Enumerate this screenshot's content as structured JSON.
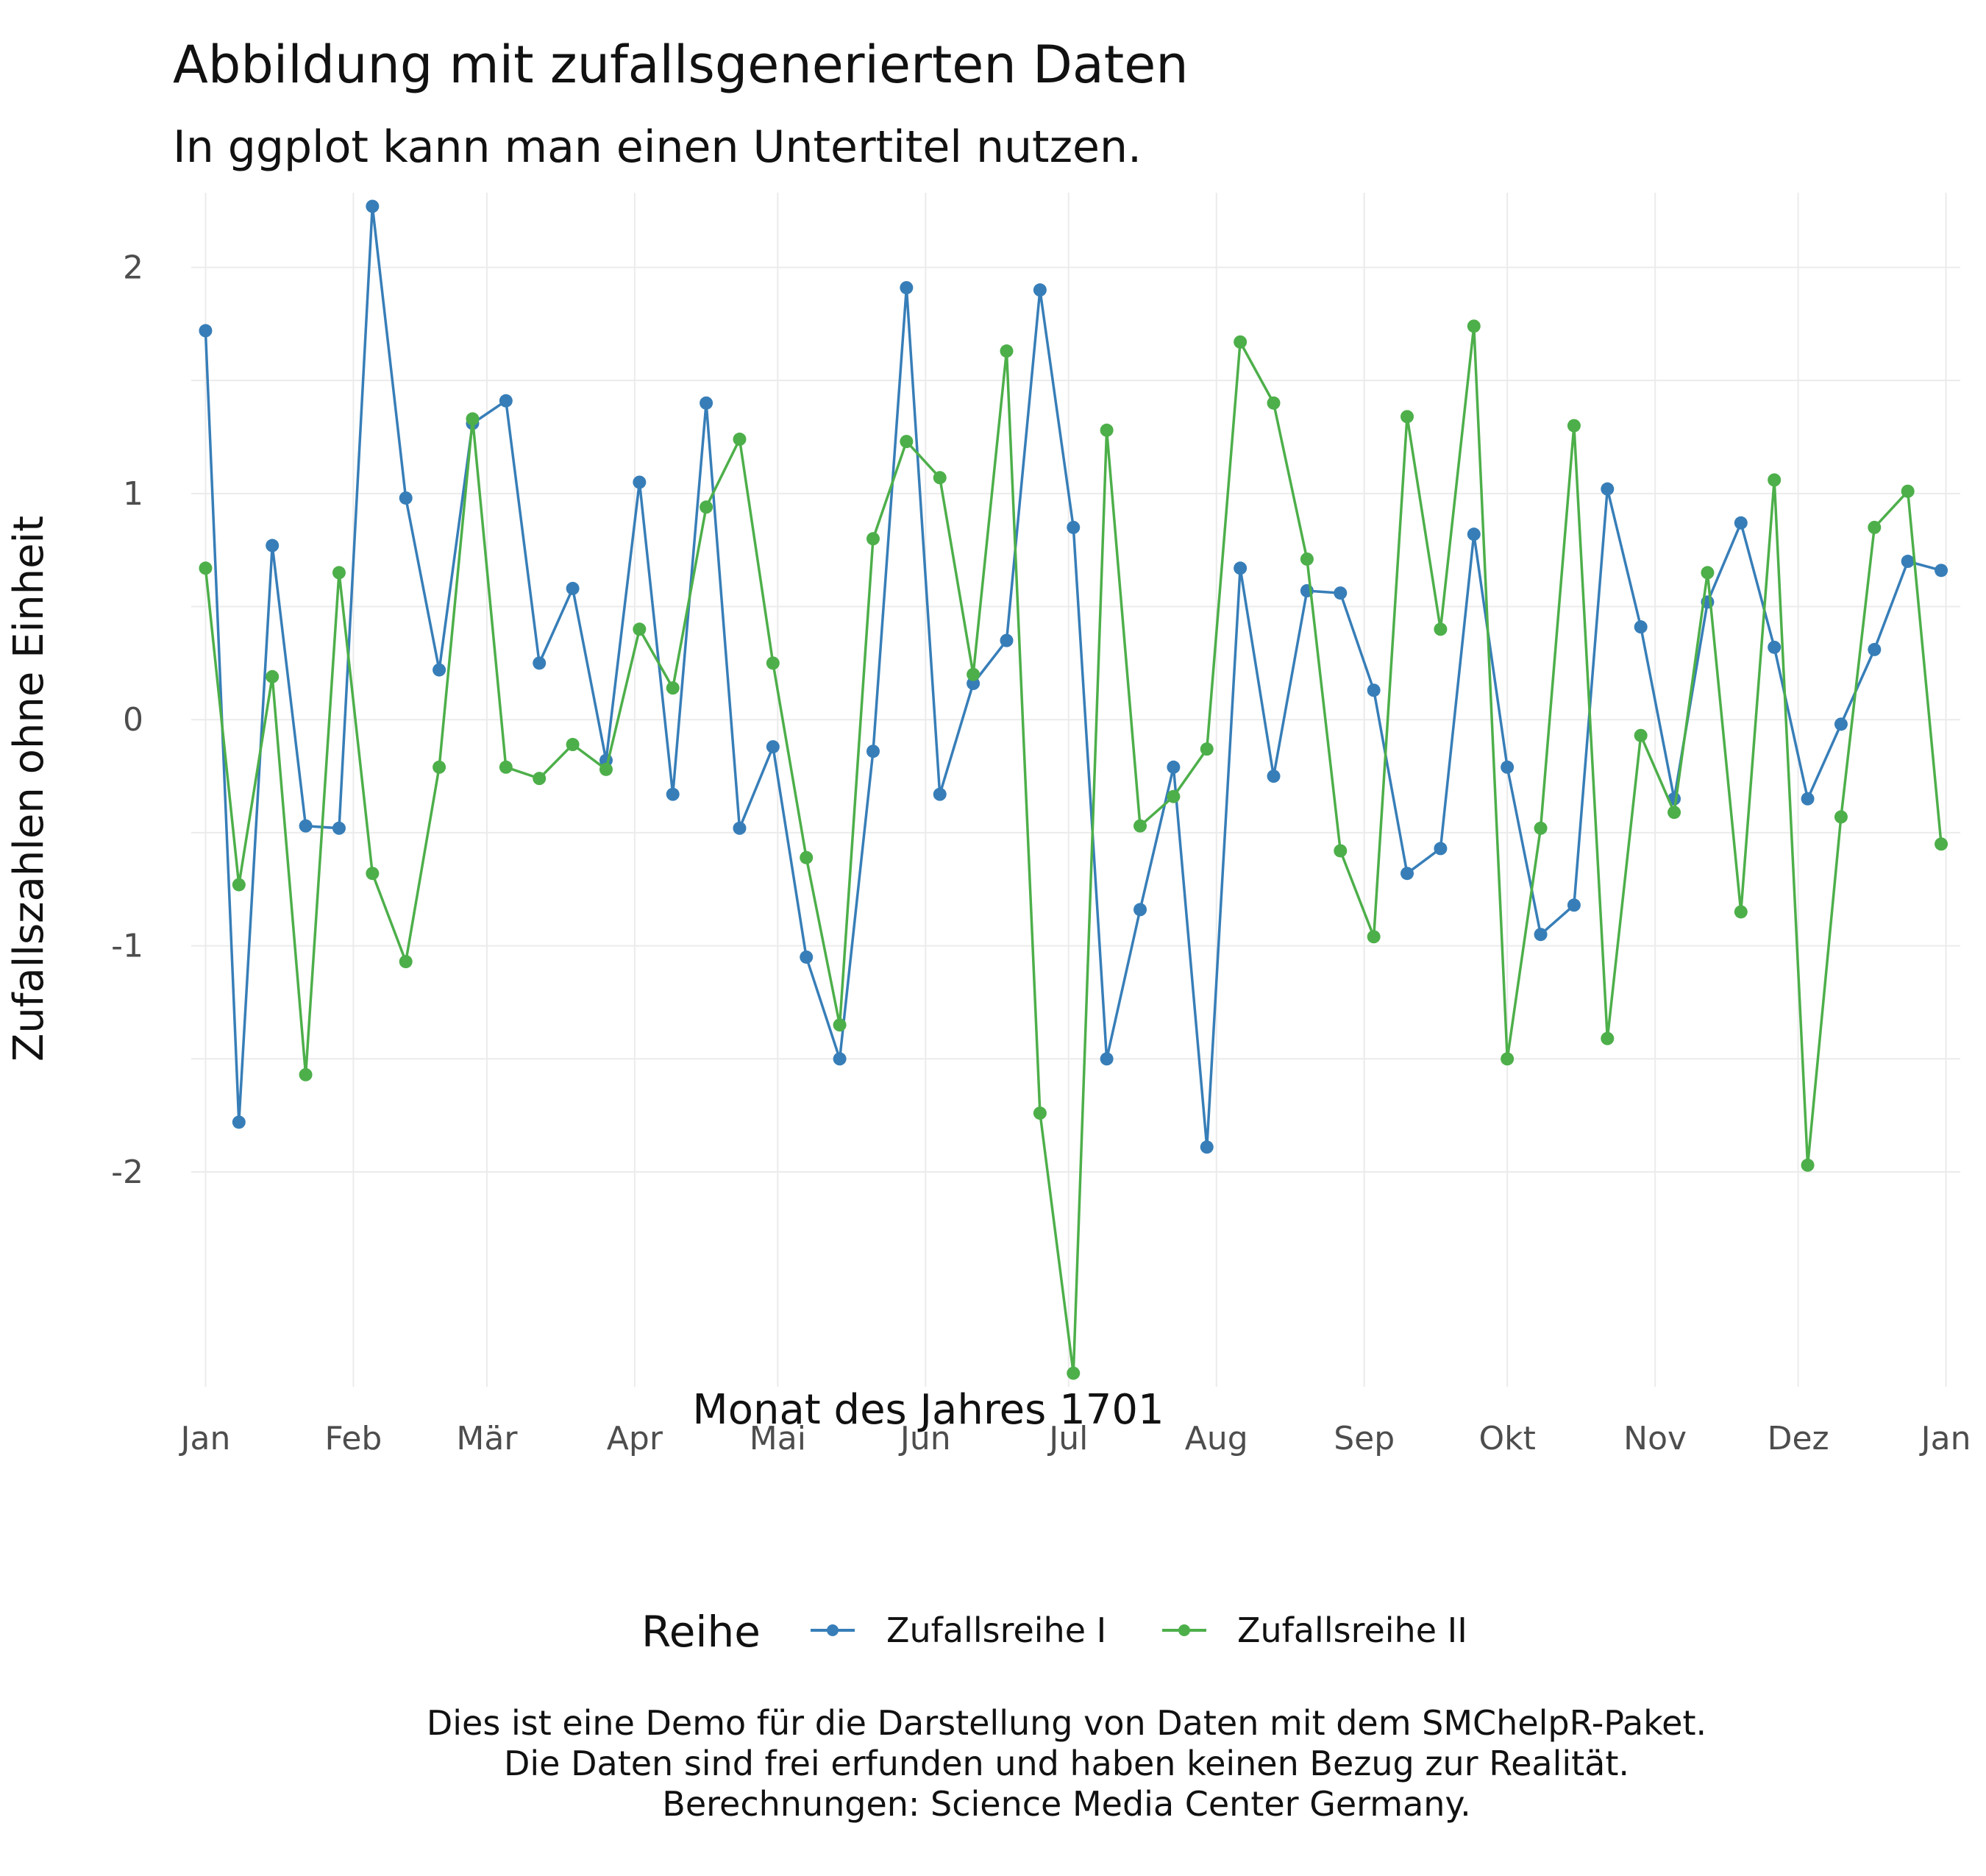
{
  "chart_data": {
    "type": "line",
    "title": "Abbildung mit zufallsgenerierten Daten",
    "subtitle": "In ggplot kann man einen Untertitel nutzen.",
    "xlabel": "Monat des Jahres 1701",
    "ylabel": "Zufallszahlen ohne Einheit",
    "x_tick_labels": [
      "Jan",
      "Feb",
      "Mär",
      "Apr",
      "Mai",
      "Jun",
      "Jul",
      "Aug",
      "Sep",
      "Okt",
      "Nov",
      "Dez",
      "Jan"
    ],
    "y_ticks": [
      2,
      1,
      0,
      -1,
      -2
    ],
    "ylim": [
      -2.95,
      2.33
    ],
    "x_dates": [
      "1701-01-01",
      "1701-01-08",
      "1701-01-15",
      "1701-01-22",
      "1701-01-29",
      "1701-02-05",
      "1701-02-12",
      "1701-02-19",
      "1701-02-26",
      "1701-03-05",
      "1701-03-12",
      "1701-03-19",
      "1701-03-26",
      "1701-04-02",
      "1701-04-09",
      "1701-04-16",
      "1701-04-23",
      "1701-04-30",
      "1701-05-07",
      "1701-05-14",
      "1701-05-21",
      "1701-05-28",
      "1701-06-04",
      "1701-06-11",
      "1701-06-18",
      "1701-06-25",
      "1701-07-02",
      "1701-07-09",
      "1701-07-16",
      "1701-07-23",
      "1701-07-30",
      "1701-08-06",
      "1701-08-13",
      "1701-08-20",
      "1701-08-27",
      "1701-09-03",
      "1701-09-10",
      "1701-09-17",
      "1701-09-24",
      "1701-10-01",
      "1701-10-08",
      "1701-10-15",
      "1701-10-22",
      "1701-10-29",
      "1701-11-05",
      "1701-11-12",
      "1701-11-19",
      "1701-11-26",
      "1701-12-03",
      "1701-12-10",
      "1701-12-17",
      "1701-12-24",
      "1701-12-31"
    ],
    "series": [
      {
        "name": "Zufallsreihe I",
        "color": "#377eb8",
        "values": [
          1.72,
          -1.78,
          0.77,
          -0.47,
          -0.48,
          2.27,
          0.98,
          0.22,
          1.31,
          1.41,
          0.25,
          0.58,
          -0.18,
          1.05,
          -0.33,
          1.4,
          -0.48,
          -0.12,
          -1.05,
          -1.5,
          -0.14,
          1.91,
          -0.33,
          0.16,
          0.35,
          1.9,
          0.85,
          -1.5,
          -0.84,
          -0.21,
          -1.89,
          0.67,
          -0.25,
          0.57,
          0.56,
          0.13,
          -0.68,
          -0.57,
          0.82,
          -0.21,
          -0.95,
          -0.82,
          1.02,
          0.41,
          -0.35,
          0.52,
          0.87,
          0.32,
          -0.35,
          -0.02,
          0.31,
          0.7,
          0.66
        ]
      },
      {
        "name": "Zufallsreihe II",
        "color": "#4daf4a",
        "values": [
          0.67,
          -0.73,
          0.19,
          -1.57,
          0.65,
          -0.68,
          -1.07,
          -0.21,
          1.33,
          -0.21,
          -0.26,
          -0.11,
          -0.22,
          0.4,
          0.14,
          0.94,
          1.24,
          0.25,
          -0.61,
          -1.35,
          0.8,
          1.23,
          1.07,
          0.2,
          1.63,
          -1.74,
          -2.89,
          1.28,
          -0.47,
          -0.34,
          -0.13,
          1.67,
          1.4,
          0.71,
          -0.58,
          -0.96,
          1.34,
          0.4,
          1.74,
          -1.5,
          -0.48,
          1.3,
          -1.41,
          -0.07,
          -0.41,
          0.65,
          -0.85,
          1.06,
          -1.97,
          -0.43,
          0.85,
          1.01,
          -0.55
        ]
      }
    ],
    "legend": {
      "title": "Reihe",
      "position": "bottom"
    },
    "grid": true
  },
  "caption": [
    "Dies ist eine Demo für die Darstellung von Daten mit dem SMChelpR-Paket.",
    "Die Daten sind frei erfunden und haben keinen Bezug zur Realität.",
    "Berechnungen: Science Media Center Germany."
  ]
}
